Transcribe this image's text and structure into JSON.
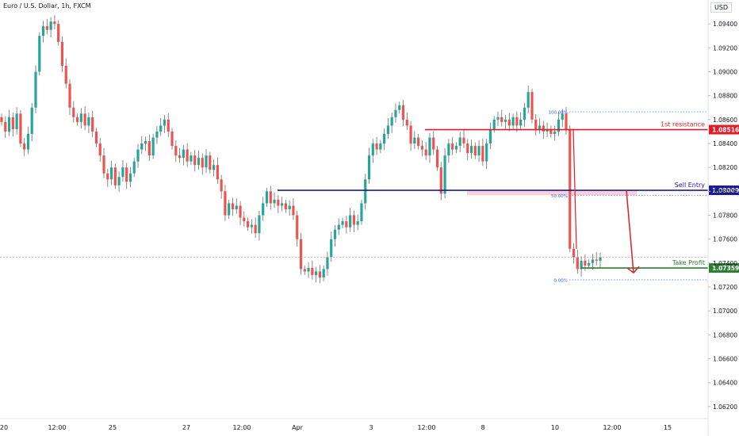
{
  "chart_data": {
    "type": "candlestick",
    "title": "Euro / U.S. Dollar, 1h, FXCM",
    "currency": "USD",
    "ylim": [
      1.061,
      1.096
    ],
    "y_ticks": [
      "1.06200",
      "1.06400",
      "1.06600",
      "1.06800",
      "1.07000",
      "1.07200",
      "1.07400",
      "1.07600",
      "1.07800",
      "1.08000",
      "1.08200",
      "1.08400",
      "1.08600",
      "1.08800",
      "1.09000",
      "1.09200",
      "1.09400"
    ],
    "x_ticks": [
      "20",
      "12:00",
      "25",
      "27",
      "12:00",
      "Apr",
      "3",
      "12:00",
      "8",
      "10",
      "12:00",
      "15"
    ],
    "price_path": [
      [
        1.0858,
        1.085,
        1.0862,
        1.0852,
        1.0865,
        1.084,
        1.0835,
        1.0848,
        1.087,
        1.09,
        1.093,
        1.0938,
        1.0935,
        1.0942,
        1.094,
        1.0925,
        1.0905,
        1.089,
        1.087,
        1.0862,
        1.0858,
        1.0865,
        1.0855,
        1.0862,
        1.085,
        1.084,
        1.083,
        1.0815,
        1.081,
        1.082,
        1.0805,
        1.0812,
        1.082,
        1.0808,
        1.0815,
        1.0825,
        1.0835,
        1.084,
        1.0842,
        1.083,
        1.0845,
        1.085,
        1.0855,
        1.086,
        1.085,
        1.0838,
        1.083,
        1.0828,
        1.0835,
        1.0825,
        1.083,
        1.0822,
        1.0828,
        1.082,
        1.083,
        1.0818,
        1.0822,
        1.081,
        1.08,
        1.078,
        1.079,
        1.0785,
        1.0788,
        1.0778,
        1.0775,
        1.077,
        1.0772,
        1.0765,
        1.078,
        1.079,
        1.08,
        1.079,
        1.0793,
        1.0788,
        1.079,
        1.0785,
        1.0788,
        1.078,
        1.076,
        1.0735,
        1.0733,
        1.0736,
        1.073,
        1.0733,
        1.0728,
        1.0735,
        1.0745,
        1.076,
        1.0768,
        1.0772,
        1.0775,
        1.077,
        1.078,
        1.0772,
        1.0775,
        1.079,
        1.081,
        1.083,
        1.084,
        1.0835,
        1.084,
        1.0848,
        1.0855,
        1.0862,
        1.0868,
        1.0872,
        1.086,
        1.0855,
        1.084,
        1.0845,
        1.0838,
        1.0835,
        1.083,
        1.0845,
        1.0835,
        1.082,
        1.0798,
        1.083,
        1.084,
        1.0835,
        1.0838,
        1.0845,
        1.084,
        1.0832,
        1.0838,
        1.083,
        1.0838,
        1.0825,
        1.084,
        1.0852,
        1.086,
        1.0862,
        1.0858,
        1.086,
        1.0855,
        1.0862,
        1.0855,
        1.086,
        1.087,
        1.0883,
        1.086,
        1.0852,
        1.0855,
        1.085,
        1.0852,
        1.0848,
        1.085,
        1.086,
        1.0865,
        1.0852,
        1.0752,
        1.0745,
        1.0735,
        1.0742,
        1.0738,
        1.074,
        1.0743,
        1.0742,
        1.0745
      ]
    ],
    "fib_levels": [
      {
        "label": "100.00%",
        "value": 1.08665
      },
      {
        "label": "50.00%",
        "value": 1.07967
      },
      {
        "label": "0.00%",
        "value": 1.0726
      }
    ],
    "levels": [
      {
        "label": "1st resistance",
        "value": "1.08516",
        "price": 1.08516,
        "color": "#e11d2a"
      },
      {
        "label": "Sell Entry",
        "value": "1.08009",
        "price": 1.08009,
        "color": "#1b1b9c"
      },
      {
        "label": "Take Profit",
        "value": "1.07359",
        "price": 1.07359,
        "color": "#2e7d32"
      }
    ],
    "last_price_line": 1.0745,
    "colors": {
      "up": "#26a69a",
      "down": "#ef5350",
      "wick": "#555555",
      "zone": "#f8c7cf",
      "arrow": "#e11d2a"
    }
  }
}
